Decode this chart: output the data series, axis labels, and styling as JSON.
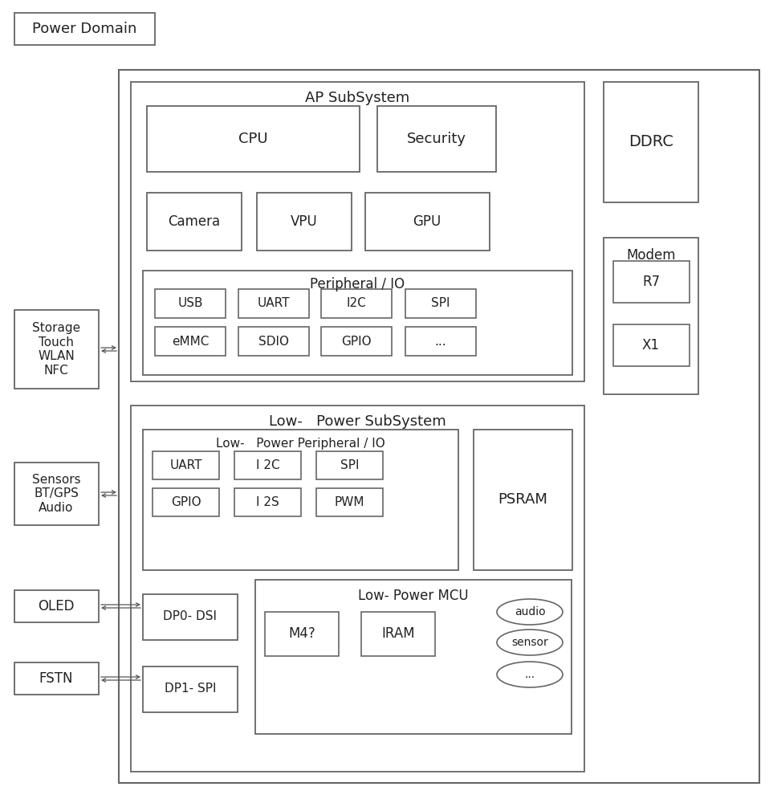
{
  "bg_color": "#ffffff",
  "edge_color": "#666666",
  "text_color": "#222222",
  "fig_width": 9.58,
  "fig_height": 10.0,
  "power_domain_label": "Power Domain",
  "ap_subsystem_label": "AP SubSystem",
  "low_power_subsystem_label": "Low-   Power SubSystem",
  "peripheral_io_label": "Peripheral / IO",
  "low_power_peripheral_label": "Low-   Power Peripheral / IO",
  "low_power_mcu_label": "Low- Power MCU",
  "ddrc_label": "DDRC",
  "modem_label": "Modem",
  "r7_label": "R7",
  "x1_label": "X1",
  "psram_label": "PSRAM",
  "storage_label": "Storage\nTouch\nWLAN\nNFC",
  "sensors_label": "Sensors\nBT/GPS\nAudio",
  "oled_label": "OLED",
  "fstn_label": "FSTN",
  "cpu_label": "CPU",
  "security_label": "Security",
  "camera_label": "Camera",
  "vpu_label": "VPU",
  "gpu_label": "GPU",
  "usb_label": "USB",
  "uart_label": "UART",
  "i2c_label": "I2C",
  "spi_label": "SPI",
  "emmc_label": "eMMC",
  "sdio_label": "SDIO",
  "gpio_label": "GPIO",
  "dots_label": "...",
  "uart2_label": "UART",
  "i2c2_label": "I 2C",
  "spi2_label": "SPI",
  "gpio2_label": "GPIO",
  "i2s_label": "I 2S",
  "pwm_label": "PWM",
  "dp0_label": "DP0- DSI",
  "dp1_label": "DP1- SPI",
  "m4_label": "M4?",
  "iram_label": "IRAM",
  "audio_ellipse_label": "audio",
  "sensor_ellipse_label": "sensor",
  "dots_ellipse_label": "..."
}
